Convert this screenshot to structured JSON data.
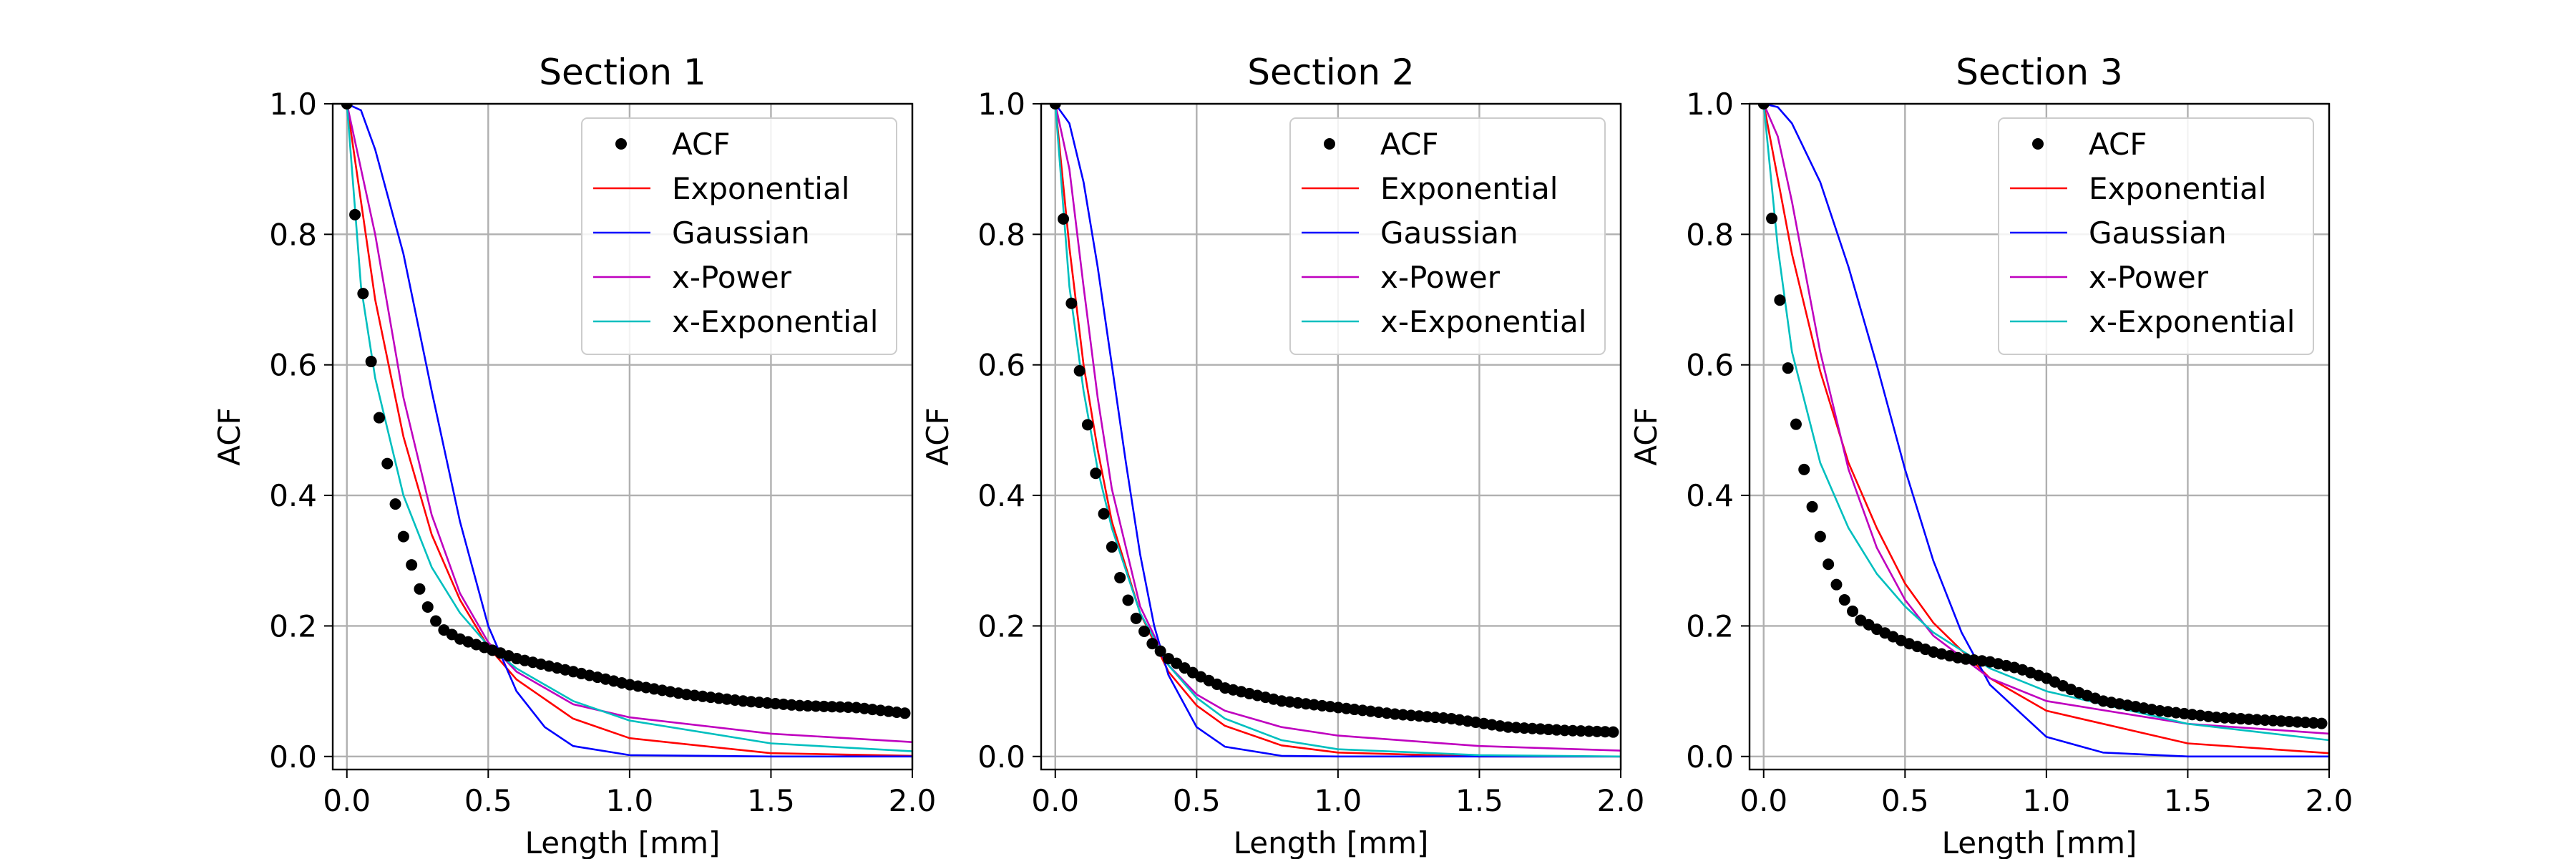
{
  "figure": {
    "legend_labels": [
      "ACF",
      "Exponential",
      "Gaussian",
      "x-Power",
      "x-Exponential"
    ],
    "series_colors": {
      "ACF": "#000000",
      "Exponential": "#ff0000",
      "Gaussian": "#0000ff",
      "x-Power": "#bf00bf",
      "x-Exponential": "#00bfbf"
    }
  },
  "chart_data": [
    {
      "type": "line",
      "title": "Section 1",
      "xlabel": "Length [mm]",
      "ylabel": "ACF",
      "xlim": [
        -0.05,
        2.0
      ],
      "ylim": [
        -0.02,
        1.0
      ],
      "xticks": [
        "0.0",
        "0.5",
        "1.0",
        "1.5",
        "2.0"
      ],
      "yticks": [
        "0.0",
        "0.2",
        "0.4",
        "0.6",
        "0.8",
        "1.0"
      ],
      "grid": true,
      "legend_position": "upper right",
      "acf_points": {
        "x": [
          0.0,
          0.024,
          0.053,
          0.081,
          0.11,
          0.138,
          0.167,
          0.195,
          0.224,
          0.252,
          0.281,
          0.31,
          0.338,
          0.4,
          0.5,
          0.6,
          0.8,
          1.0,
          1.2,
          1.4,
          1.6,
          1.8,
          2.0
        ],
        "y": [
          1.0,
          0.85,
          0.725,
          0.62,
          0.53,
          0.46,
          0.395,
          0.345,
          0.3,
          0.262,
          0.233,
          0.21,
          0.195,
          0.18,
          0.165,
          0.15,
          0.13,
          0.11,
          0.095,
          0.085,
          0.078,
          0.075,
          0.065
        ]
      },
      "series": [
        {
          "name": "Exponential",
          "x": [
            0.0,
            0.1,
            0.2,
            0.3,
            0.4,
            0.5,
            0.6,
            0.8,
            1.0,
            1.5,
            2.0
          ],
          "y": [
            1.0,
            0.7,
            0.49,
            0.34,
            0.24,
            0.168,
            0.118,
            0.058,
            0.028,
            0.005,
            0.001
          ]
        },
        {
          "name": "Gaussian",
          "x": [
            0.0,
            0.05,
            0.1,
            0.2,
            0.3,
            0.4,
            0.5,
            0.6,
            0.7,
            0.8,
            1.0,
            1.5,
            2.0
          ],
          "y": [
            1.0,
            0.99,
            0.93,
            0.77,
            0.56,
            0.36,
            0.2,
            0.1,
            0.045,
            0.016,
            0.002,
            0.0,
            0.0
          ]
        },
        {
          "name": "x-Power",
          "x": [
            0.0,
            0.1,
            0.2,
            0.3,
            0.4,
            0.5,
            0.6,
            0.8,
            1.0,
            1.5,
            2.0
          ],
          "y": [
            1.0,
            0.8,
            0.55,
            0.37,
            0.25,
            0.175,
            0.13,
            0.08,
            0.06,
            0.035,
            0.022
          ]
        },
        {
          "name": "x-Exponential",
          "x": [
            0.0,
            0.05,
            0.1,
            0.2,
            0.3,
            0.4,
            0.5,
            0.6,
            0.8,
            1.0,
            1.5,
            2.0
          ],
          "y": [
            1.0,
            0.72,
            0.58,
            0.4,
            0.29,
            0.22,
            0.17,
            0.135,
            0.085,
            0.055,
            0.02,
            0.008
          ]
        }
      ]
    },
    {
      "type": "line",
      "title": "Section 2",
      "xlabel": "Length [mm]",
      "ylabel": "ACF",
      "xlim": [
        -0.05,
        2.0
      ],
      "ylim": [
        -0.02,
        1.0
      ],
      "xticks": [
        "0.0",
        "0.5",
        "1.0",
        "1.5",
        "2.0"
      ],
      "yticks": [
        "0.0",
        "0.2",
        "0.4",
        "0.6",
        "0.8",
        "1.0"
      ],
      "grid": true,
      "legend_position": "upper right",
      "acf_points": {
        "x": [
          0.0,
          0.024,
          0.053,
          0.081,
          0.11,
          0.138,
          0.167,
          0.195,
          0.224,
          0.252,
          0.281,
          0.31,
          0.338,
          0.4,
          0.5,
          0.6,
          0.8,
          1.0,
          1.2,
          1.4,
          1.6,
          1.8,
          2.0
        ],
        "y": [
          1.0,
          0.845,
          0.71,
          0.605,
          0.52,
          0.445,
          0.38,
          0.33,
          0.28,
          0.245,
          0.215,
          0.195,
          0.175,
          0.15,
          0.125,
          0.105,
          0.085,
          0.075,
          0.065,
          0.058,
          0.045,
          0.04,
          0.037
        ]
      },
      "series": [
        {
          "name": "Exponential",
          "x": [
            0.0,
            0.05,
            0.1,
            0.15,
            0.2,
            0.3,
            0.4,
            0.5,
            0.6,
            0.8,
            1.0,
            1.5,
            2.0
          ],
          "y": [
            1.0,
            0.78,
            0.6,
            0.47,
            0.36,
            0.22,
            0.13,
            0.078,
            0.047,
            0.017,
            0.006,
            0.0,
            0.0
          ]
        },
        {
          "name": "Gaussian",
          "x": [
            0.0,
            0.05,
            0.1,
            0.15,
            0.2,
            0.25,
            0.3,
            0.35,
            0.4,
            0.5,
            0.6,
            0.8,
            1.0,
            2.0
          ],
          "y": [
            1.0,
            0.97,
            0.88,
            0.75,
            0.6,
            0.45,
            0.31,
            0.2,
            0.125,
            0.045,
            0.015,
            0.001,
            0.0,
            0.0
          ]
        },
        {
          "name": "x-Power",
          "x": [
            0.0,
            0.05,
            0.1,
            0.15,
            0.2,
            0.3,
            0.4,
            0.5,
            0.6,
            0.8,
            1.0,
            1.5,
            2.0
          ],
          "y": [
            1.0,
            0.9,
            0.72,
            0.55,
            0.41,
            0.23,
            0.14,
            0.095,
            0.07,
            0.045,
            0.032,
            0.016,
            0.009
          ]
        },
        {
          "name": "x-Exponential",
          "x": [
            0.0,
            0.05,
            0.1,
            0.15,
            0.2,
            0.3,
            0.4,
            0.5,
            0.6,
            0.8,
            1.0,
            1.5,
            2.0
          ],
          "y": [
            1.0,
            0.72,
            0.56,
            0.44,
            0.35,
            0.22,
            0.14,
            0.09,
            0.058,
            0.025,
            0.011,
            0.002,
            0.0
          ]
        }
      ]
    },
    {
      "type": "line",
      "title": "Section 3",
      "xlabel": "Length [mm]",
      "ylabel": "ACF",
      "xlim": [
        -0.05,
        2.0
      ],
      "ylim": [
        -0.02,
        1.0
      ],
      "xticks": [
        "0.0",
        "0.5",
        "1.0",
        "1.5",
        "2.0"
      ],
      "yticks": [
        "0.0",
        "0.2",
        "0.4",
        "0.6",
        "0.8",
        "1.0"
      ],
      "grid": true,
      "legend_position": "upper right",
      "acf_points": {
        "x": [
          0.0,
          0.024,
          0.053,
          0.081,
          0.11,
          0.138,
          0.167,
          0.195,
          0.224,
          0.252,
          0.281,
          0.31,
          0.338,
          0.4,
          0.5,
          0.6,
          0.7,
          0.8,
          0.9,
          1.0,
          1.1,
          1.2,
          1.4,
          1.6,
          1.8,
          2.0
        ],
        "y": [
          1.0,
          0.845,
          0.715,
          0.61,
          0.52,
          0.45,
          0.39,
          0.345,
          0.3,
          0.268,
          0.243,
          0.225,
          0.21,
          0.195,
          0.175,
          0.16,
          0.15,
          0.145,
          0.135,
          0.12,
          0.1,
          0.085,
          0.07,
          0.06,
          0.055,
          0.05
        ]
      },
      "series": [
        {
          "name": "Exponential",
          "x": [
            0.0,
            0.1,
            0.2,
            0.3,
            0.4,
            0.5,
            0.6,
            0.8,
            1.0,
            1.5,
            2.0
          ],
          "y": [
            1.0,
            0.77,
            0.59,
            0.45,
            0.35,
            0.265,
            0.205,
            0.12,
            0.07,
            0.02,
            0.005
          ]
        },
        {
          "name": "Gaussian",
          "x": [
            0.0,
            0.05,
            0.1,
            0.2,
            0.3,
            0.4,
            0.5,
            0.6,
            0.7,
            0.8,
            1.0,
            1.2,
            1.5,
            2.0
          ],
          "y": [
            1.0,
            0.995,
            0.97,
            0.88,
            0.75,
            0.6,
            0.44,
            0.3,
            0.19,
            0.11,
            0.03,
            0.006,
            0.0,
            0.0
          ]
        },
        {
          "name": "x-Power",
          "x": [
            0.0,
            0.05,
            0.1,
            0.2,
            0.3,
            0.4,
            0.5,
            0.6,
            0.8,
            1.0,
            1.5,
            2.0
          ],
          "y": [
            1.0,
            0.95,
            0.85,
            0.62,
            0.44,
            0.32,
            0.24,
            0.185,
            0.12,
            0.085,
            0.05,
            0.035
          ]
        },
        {
          "name": "x-Exponential",
          "x": [
            0.0,
            0.05,
            0.1,
            0.2,
            0.3,
            0.4,
            0.5,
            0.6,
            0.8,
            1.0,
            1.5,
            2.0
          ],
          "y": [
            1.0,
            0.78,
            0.62,
            0.45,
            0.35,
            0.28,
            0.23,
            0.19,
            0.135,
            0.1,
            0.05,
            0.025
          ]
        }
      ]
    }
  ]
}
